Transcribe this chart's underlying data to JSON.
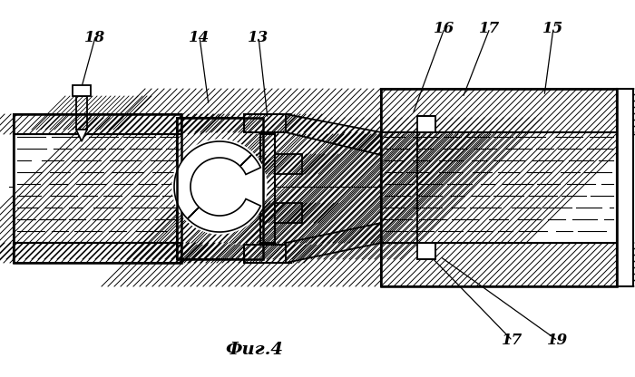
{
  "bg_color": "#ffffff",
  "line_color": "#000000",
  "figsize": [
    7.0,
    4.16
  ],
  "dpi": 100,
  "fig_label": "Фиг.4",
  "label_fontsize": 14,
  "annotation_fontsize": 12
}
